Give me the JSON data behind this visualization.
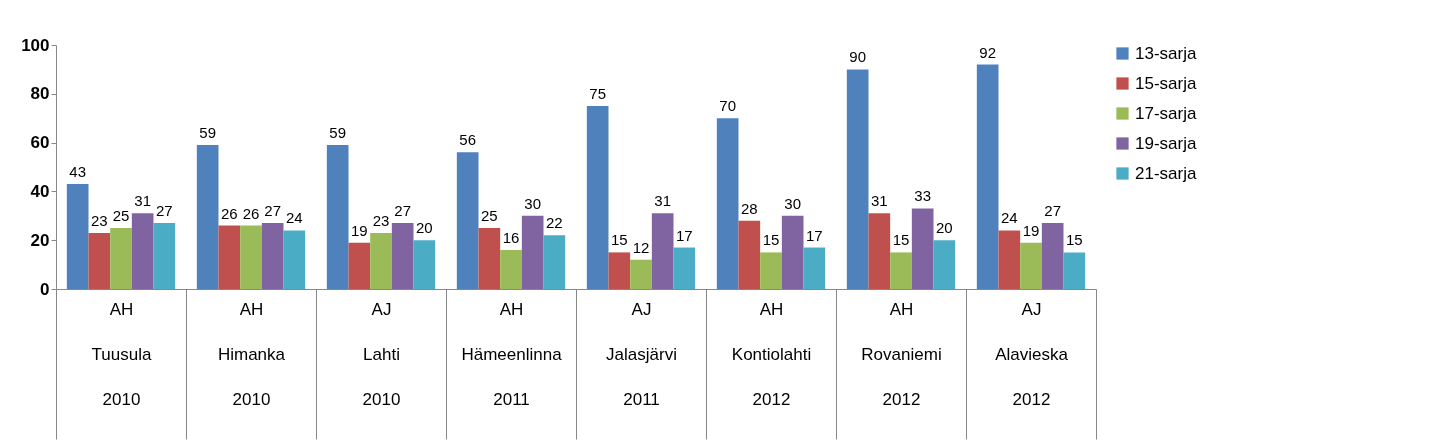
{
  "chart_data": {
    "type": "bar",
    "categories": [
      "AH\nTuusula\n2010",
      "AH\nHimanka\n2010",
      "AJ\nLahti\n2010",
      "AH\nHämeenlinna\n2011",
      "AJ\nJalasjärvi\n2011",
      "AH\nKontiolahti\n2012",
      "AH\nRovaniemi\n2012",
      "AJ\nAlavieska\n2012"
    ],
    "series": [
      {
        "name": "13-sarja",
        "color": "#4f81bd",
        "values": [
          43,
          59,
          59,
          56,
          75,
          70,
          90,
          92
        ]
      },
      {
        "name": "15-sarja",
        "color": "#c0504d",
        "values": [
          23,
          26,
          19,
          25,
          15,
          28,
          31,
          24
        ]
      },
      {
        "name": "17-sarja",
        "color": "#9bbb59",
        "values": [
          25,
          26,
          23,
          16,
          12,
          15,
          15,
          19
        ]
      },
      {
        "name": "19-sarja",
        "color": "#8064a2",
        "values": [
          31,
          27,
          27,
          30,
          31,
          30,
          33,
          27
        ]
      },
      {
        "name": "21-sarja",
        "color": "#4bacc6",
        "values": [
          27,
          24,
          20,
          22,
          17,
          17,
          20,
          15
        ]
      }
    ],
    "ylim": [
      0,
      100
    ],
    "yticks": [
      0,
      20,
      40,
      60,
      80,
      100
    ],
    "grid": false,
    "legend": "right",
    "data_labels": true
  }
}
